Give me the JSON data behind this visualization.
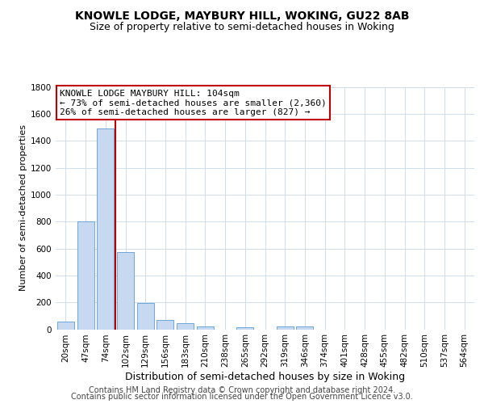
{
  "title": "KNOWLE LODGE, MAYBURY HILL, WOKING, GU22 8AB",
  "subtitle": "Size of property relative to semi-detached houses in Woking",
  "xlabel": "Distribution of semi-detached houses by size in Woking",
  "ylabel": "Number of semi-detached properties",
  "categories": [
    "20sqm",
    "47sqm",
    "74sqm",
    "102sqm",
    "129sqm",
    "156sqm",
    "183sqm",
    "210sqm",
    "238sqm",
    "265sqm",
    "292sqm",
    "319sqm",
    "346sqm",
    "374sqm",
    "401sqm",
    "428sqm",
    "455sqm",
    "482sqm",
    "510sqm",
    "537sqm",
    "564sqm"
  ],
  "values": [
    60,
    800,
    1490,
    575,
    195,
    70,
    45,
    20,
    0,
    15,
    0,
    20,
    20,
    0,
    0,
    0,
    0,
    0,
    0,
    0,
    0
  ],
  "bar_color": "#c6d9f0",
  "bar_edgecolor": "#5b9bd5",
  "vline_color": "#c00000",
  "annotation_line1": "KNOWLE LODGE MAYBURY HILL: 104sqm",
  "annotation_line2": "← 73% of semi-detached houses are smaller (2,360)",
  "annotation_line3": "26% of semi-detached houses are larger (827) →",
  "annotation_box_color": "#c00000",
  "ylim": [
    0,
    1800
  ],
  "yticks": [
    0,
    200,
    400,
    600,
    800,
    1000,
    1200,
    1400,
    1600,
    1800
  ],
  "grid_color": "#d0dce8",
  "background_color": "#ffffff",
  "footer_line1": "Contains HM Land Registry data © Crown copyright and database right 2024.",
  "footer_line2": "Contains public sector information licensed under the Open Government Licence v3.0.",
  "title_fontsize": 10,
  "subtitle_fontsize": 9,
  "xlabel_fontsize": 9,
  "ylabel_fontsize": 8,
  "tick_fontsize": 7.5,
  "annotation_fontsize": 8,
  "footer_fontsize": 7
}
